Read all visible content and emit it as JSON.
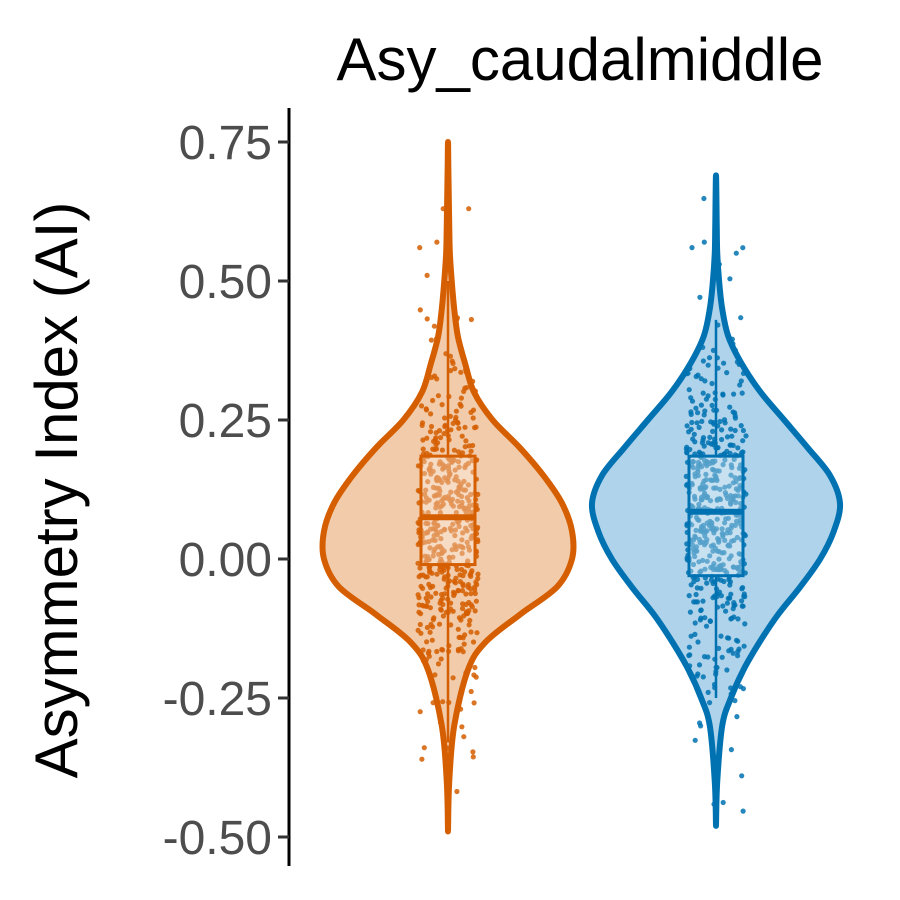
{
  "chart_data": {
    "type": "violin",
    "title": "Asy_caudalmiddle",
    "xlabel": "",
    "ylabel": "Asymmetry Index (AI)",
    "ylim": [
      -0.5,
      0.8
    ],
    "yticks": [
      0.75,
      0.5,
      0.25,
      0.0,
      -0.25,
      -0.5
    ],
    "ytick_labels": [
      "0.75",
      "0.50",
      "0.25",
      "0.00",
      "-0.25",
      "-0.50"
    ],
    "grid": false,
    "legend": "none",
    "series": [
      {
        "color": "#D55E00",
        "fill": "#F2CBAA",
        "min": -0.49,
        "max": 0.75,
        "q1": -0.01,
        "median": 0.075,
        "q3": 0.185,
        "whisker_low": -0.33,
        "whisker_high": 0.5,
        "density": [
          [
            -0.49,
            0.0
          ],
          [
            -0.4,
            0.01
          ],
          [
            -0.3,
            0.05
          ],
          [
            -0.2,
            0.16
          ],
          [
            -0.15,
            0.3
          ],
          [
            -0.1,
            0.58
          ],
          [
            -0.05,
            0.88
          ],
          [
            0.0,
            1.0
          ],
          [
            0.05,
            1.0
          ],
          [
            0.1,
            0.92
          ],
          [
            0.15,
            0.77
          ],
          [
            0.2,
            0.58
          ],
          [
            0.25,
            0.36
          ],
          [
            0.3,
            0.21
          ],
          [
            0.35,
            0.14
          ],
          [
            0.4,
            0.08
          ],
          [
            0.45,
            0.05
          ],
          [
            0.5,
            0.03
          ],
          [
            0.55,
            0.015
          ],
          [
            0.6,
            0.01
          ],
          [
            0.7,
            0.003
          ],
          [
            0.75,
            0.0
          ]
        ],
        "outliers": [
          0.63,
          0.63,
          0.57,
          0.56,
          0.51,
          -0.27,
          -0.34,
          -0.36
        ]
      },
      {
        "color": "#0072B2",
        "fill": "#AED3EB",
        "min": -0.48,
        "max": 0.69,
        "q1": -0.03,
        "median": 0.085,
        "q3": 0.185,
        "whisker_low": -0.25,
        "whisker_high": 0.43,
        "density": [
          [
            -0.48,
            0.0
          ],
          [
            -0.4,
            0.01
          ],
          [
            -0.3,
            0.05
          ],
          [
            -0.25,
            0.12
          ],
          [
            -0.2,
            0.22
          ],
          [
            -0.15,
            0.35
          ],
          [
            -0.1,
            0.5
          ],
          [
            -0.05,
            0.68
          ],
          [
            0.0,
            0.84
          ],
          [
            0.05,
            0.95
          ],
          [
            0.1,
            1.0
          ],
          [
            0.15,
            0.92
          ],
          [
            0.2,
            0.74
          ],
          [
            0.25,
            0.55
          ],
          [
            0.3,
            0.36
          ],
          [
            0.35,
            0.21
          ],
          [
            0.4,
            0.1
          ],
          [
            0.45,
            0.05
          ],
          [
            0.5,
            0.025
          ],
          [
            0.55,
            0.01
          ],
          [
            0.6,
            0.006
          ],
          [
            0.69,
            0.0
          ]
        ],
        "outliers": [
          0.57,
          0.56,
          0.55,
          0.53,
          -0.24
        ]
      }
    ]
  }
}
